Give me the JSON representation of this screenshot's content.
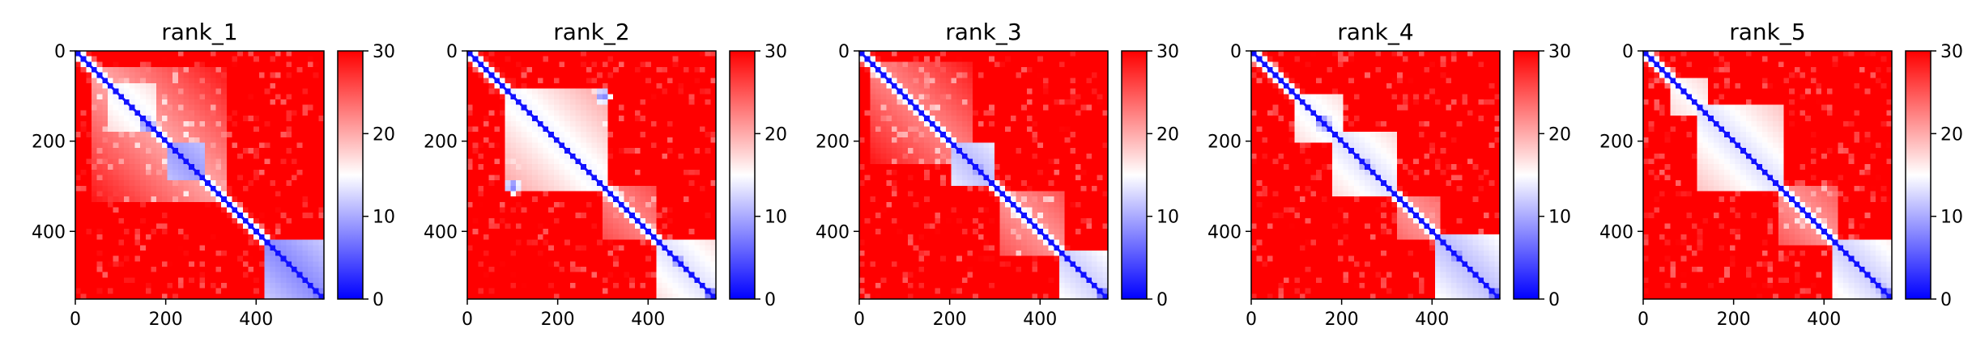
{
  "chart_data": {
    "type": "heatmap",
    "colormap": {
      "name": "bwr",
      "low": "#0000ff",
      "mid": "#ffffff",
      "high": "#ff0000"
    },
    "vmin": 0,
    "vmax": 30,
    "xlim": [
      0,
      550
    ],
    "ylim": [
      550,
      0
    ],
    "x_ticks": [
      "0",
      "200",
      "400"
    ],
    "x_tick_values": [
      0,
      200,
      400
    ],
    "y_ticks": [
      "0",
      "200",
      "400"
    ],
    "y_tick_values": [
      0,
      200,
      400
    ],
    "colorbar_ticks": [
      "0",
      "10",
      "20",
      "30"
    ],
    "colorbar_tick_values": [
      0,
      10,
      20,
      30
    ],
    "grid": false,
    "panels": [
      {
        "title": "rank_1",
        "domains": [
          {
            "start": 70,
            "end": 180,
            "value": 14
          },
          {
            "start": 200,
            "end": 290,
            "value": 9
          },
          {
            "start": 420,
            "end": 550,
            "value": 8
          },
          {
            "start": 30,
            "end": 330,
            "value": 20
          }
        ],
        "spots": [
          {
            "x": 160,
            "y": 165,
            "value": 3
          },
          {
            "x": 265,
            "y": 265,
            "value": 4
          },
          {
            "x": 450,
            "y": 450,
            "value": 3
          },
          {
            "x": 540,
            "y": 540,
            "value": 2
          }
        ]
      },
      {
        "title": "rank_2",
        "domains": [
          {
            "start": 85,
            "end": 310,
            "value": 14
          },
          {
            "start": 300,
            "end": 420,
            "value": 22
          },
          {
            "start": 420,
            "end": 550,
            "value": 13
          }
        ],
        "spots": [
          {
            "x": 100,
            "y": 300,
            "value": 5
          },
          {
            "x": 300,
            "y": 100,
            "value": 5
          },
          {
            "x": 470,
            "y": 470,
            "value": 4
          },
          {
            "x": 540,
            "y": 540,
            "value": 2
          }
        ]
      },
      {
        "title": "rank_3",
        "domains": [
          {
            "start": 20,
            "end": 250,
            "value": 22
          },
          {
            "start": 200,
            "end": 300,
            "value": 11
          },
          {
            "start": 310,
            "end": 450,
            "value": 21
          },
          {
            "start": 440,
            "end": 550,
            "value": 12
          }
        ],
        "spots": [
          {
            "x": 260,
            "y": 260,
            "value": 4
          },
          {
            "x": 460,
            "y": 460,
            "value": 5
          },
          {
            "x": 540,
            "y": 540,
            "value": 2
          }
        ]
      },
      {
        "title": "rank_4",
        "domains": [
          {
            "start": 90,
            "end": 200,
            "value": 14
          },
          {
            "start": 180,
            "end": 320,
            "value": 13
          },
          {
            "start": 320,
            "end": 420,
            "value": 21
          },
          {
            "start": 410,
            "end": 550,
            "value": 11
          }
        ],
        "spots": [
          {
            "x": 160,
            "y": 160,
            "value": 3
          },
          {
            "x": 255,
            "y": 255,
            "value": 4
          },
          {
            "x": 450,
            "y": 450,
            "value": 3
          },
          {
            "x": 540,
            "y": 540,
            "value": 2
          }
        ]
      },
      {
        "title": "rank_5",
        "domains": [
          {
            "start": 60,
            "end": 140,
            "value": 15
          },
          {
            "start": 120,
            "end": 310,
            "value": 13
          },
          {
            "start": 300,
            "end": 430,
            "value": 21
          },
          {
            "start": 420,
            "end": 550,
            "value": 12
          }
        ],
        "spots": [
          {
            "x": 520,
            "y": 520,
            "value": 4
          },
          {
            "x": 540,
            "y": 540,
            "value": 2
          }
        ]
      }
    ]
  }
}
